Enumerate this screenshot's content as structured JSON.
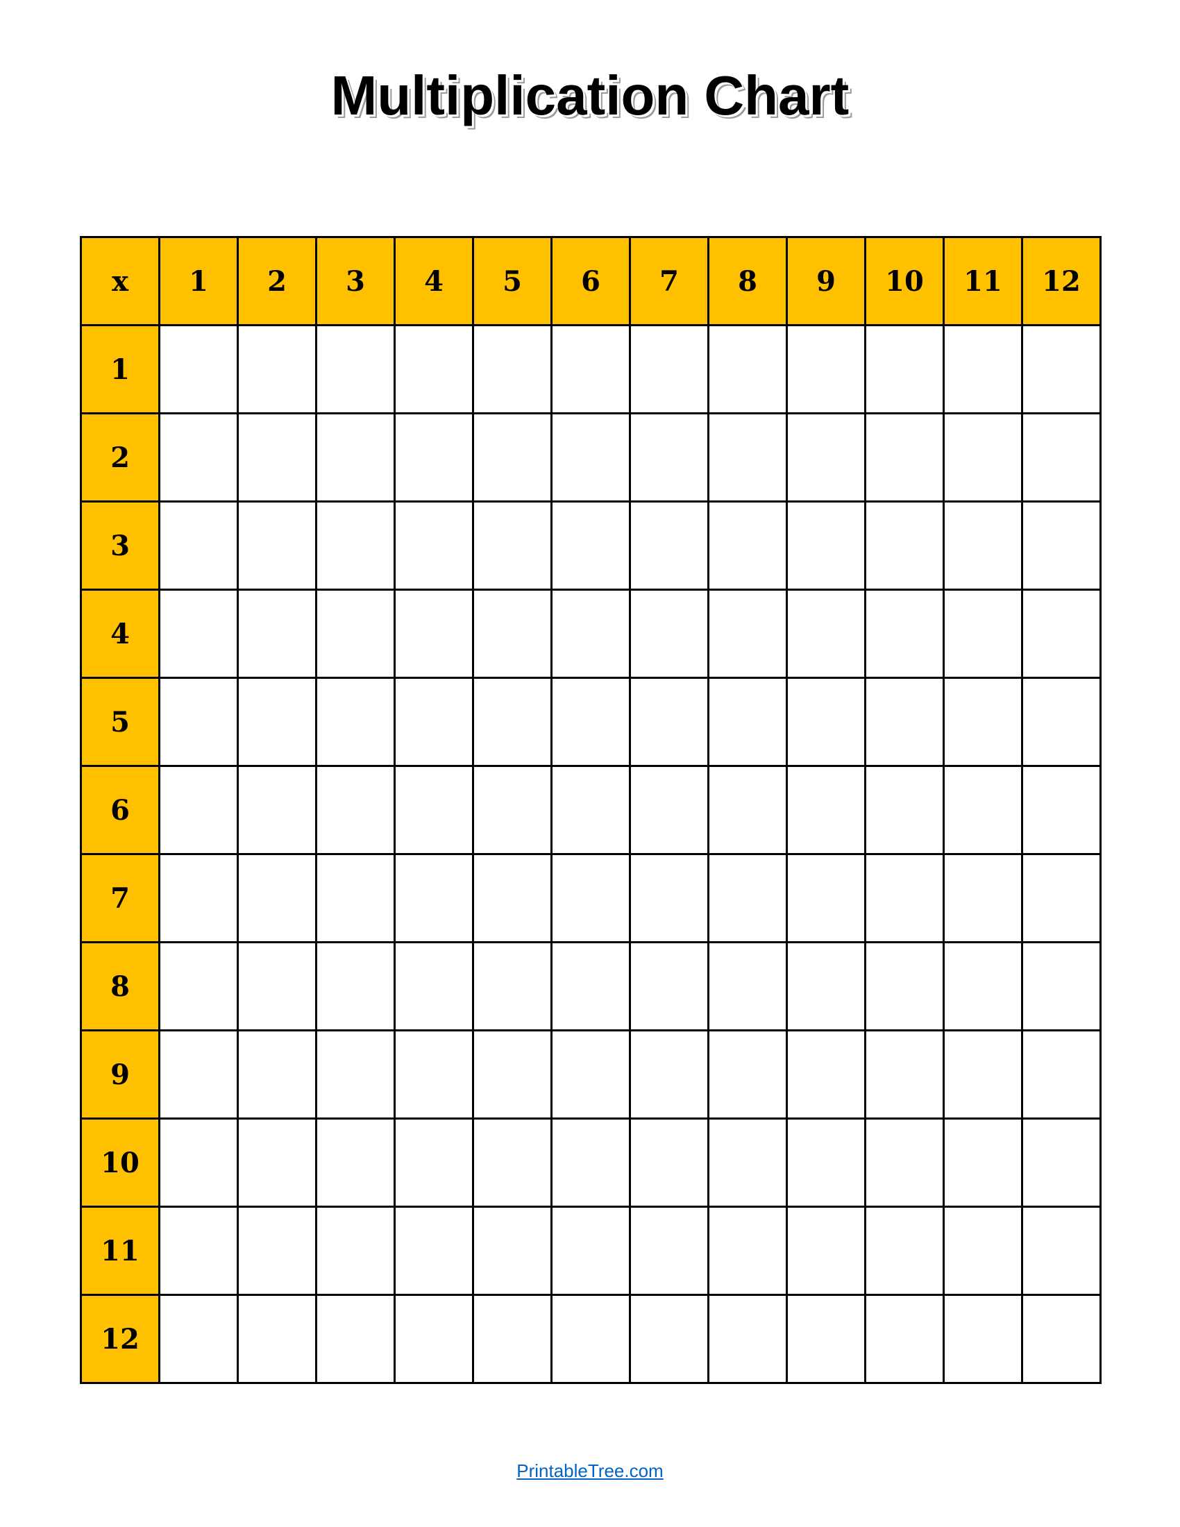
{
  "title": "Multiplication Chart",
  "corner_label": "x",
  "column_headers": [
    "1",
    "2",
    "3",
    "4",
    "5",
    "6",
    "7",
    "8",
    "9",
    "10",
    "11",
    "12"
  ],
  "row_headers": [
    "1",
    "2",
    "3",
    "4",
    "5",
    "6",
    "7",
    "8",
    "9",
    "10",
    "11",
    "12"
  ],
  "footer_link": "PrintableTree.com",
  "colors": {
    "header_fill": "#FFC000",
    "link": "#0563C1",
    "grid_lines": "#000000"
  }
}
